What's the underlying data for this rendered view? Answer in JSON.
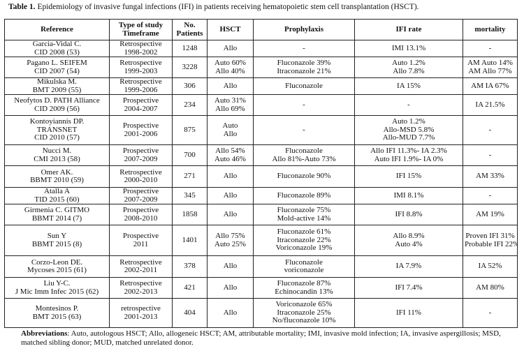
{
  "caption": {
    "label": "Table 1.",
    "text": "Epidemiology of invasive fungal infections (IFI) in patients receiving hematopoietic stem cell transplantation (HSCT)."
  },
  "headers": [
    [
      "Reference"
    ],
    [
      "Type of study",
      "Timeframe"
    ],
    [
      "No.",
      "Patients"
    ],
    [
      "HSCT"
    ],
    [
      "Prophylaxis"
    ],
    [
      "IFI rate"
    ],
    [
      "mortality"
    ]
  ],
  "rows": [
    [
      [
        "Garcia-Vidal C.",
        "CID 2008 (53)"
      ],
      [
        "Retrospective",
        "1998-2002"
      ],
      [
        "1248"
      ],
      [
        "Allo"
      ],
      [
        "-"
      ],
      [
        "IMI 13.1%"
      ],
      [
        "-"
      ]
    ],
    [
      [
        "Pagano L. SEIFEM",
        "CID 2007 (54)"
      ],
      [
        "Retrospective",
        "1999-2003"
      ],
      [
        "3228"
      ],
      [
        "Auto 60%",
        "Allo 40%"
      ],
      [
        "Fluconazole 39%",
        "Itraconazole 21%"
      ],
      [
        "Auto 1.2%",
        "Allo 7.8%"
      ],
      [
        "AM Auto 14%",
        "AM Allo 77%"
      ]
    ],
    [
      [
        "Mikulska M.",
        "BMT 2009 (55)"
      ],
      [
        "Retrospective",
        "1999-2006"
      ],
      [
        "306"
      ],
      [
        "Allo"
      ],
      [
        "Fluconazole"
      ],
      [
        "IA 15%"
      ],
      [
        "AM IA 67%"
      ]
    ],
    [
      [
        "Neofytos D. PATH Alliance",
        "CID 2009 (56)"
      ],
      [
        "Prospective",
        "2004-2007"
      ],
      [
        "234"
      ],
      [
        "Auto 31%",
        "Allo 69%"
      ],
      [
        "-"
      ],
      [
        "-"
      ],
      [
        "IA 21.5%"
      ]
    ],
    [
      [
        "Kontoyiannis DP.",
        "TRANSNET",
        "CID 2010 (57)"
      ],
      [
        "Prospective",
        "2001-2006"
      ],
      [
        "875"
      ],
      [
        "Auto",
        "Allo"
      ],
      [
        "-"
      ],
      [
        "Auto 1.2%",
        "Allo-MSD 5.8%",
        "Allo-MUD 7.7%"
      ],
      [
        "-"
      ]
    ],
    [
      [
        "Nucci M.",
        "CMI 2013 (58)"
      ],
      [
        "Prospective",
        "2007-2009"
      ],
      [
        "700"
      ],
      [
        "Allo 54%",
        "Auto 46%"
      ],
      [
        "Fluconazole",
        "Allo 81%-Auto 73%"
      ],
      [
        "Allo IFI 11.3%- IA 2.3%",
        "Auto IFI  1.9%- IA 0%"
      ],
      [
        "-"
      ]
    ],
    [
      [
        "Omer AK.",
        "BBMT 2010 (59)"
      ],
      [
        "Retrospective",
        "2000-2010"
      ],
      [
        "271"
      ],
      [
        "Allo"
      ],
      [
        "Fluconazole 90%"
      ],
      [
        "IFI 15%"
      ],
      [
        "AM 33%"
      ]
    ],
    [
      [
        "Atalla A",
        "TID 2015 (60)"
      ],
      [
        "Prospective",
        "2007-2009"
      ],
      [
        "345"
      ],
      [
        "Allo"
      ],
      [
        "Fluconazole 89%"
      ],
      [
        "IMI 8.1%"
      ],
      [
        "-"
      ]
    ],
    [
      [
        "Girmenia C. GITMO",
        "BBMT 2014 (7)"
      ],
      [
        "Prospective",
        "2008-2010"
      ],
      [
        "1858"
      ],
      [
        "Allo"
      ],
      [
        "Fluconazole 75%",
        "Mold-active 14%"
      ],
      [
        "IFI 8.8%"
      ],
      [
        "AM 19%"
      ]
    ],
    [
      [
        "Sun Y",
        "BBMT 2015 (8)"
      ],
      [
        "Prospective",
        "2011"
      ],
      [
        "1401"
      ],
      [
        "Allo 75%",
        "Auto 25%"
      ],
      [
        "Fluconazole 61%",
        "Itraconazole 22%",
        "Voriconazole 19%"
      ],
      [
        "Allo 8.9%",
        "Auto 4%"
      ],
      [
        "Proven IFI 31%",
        "Probable IFI 22%"
      ]
    ],
    [
      [
        "Corzo-Leon DE.",
        "Mycoses 2015 (61)"
      ],
      [
        "Retrospective",
        "2002-2011"
      ],
      [
        "378"
      ],
      [
        "Allo"
      ],
      [
        "Fluconazole",
        "voriconazole"
      ],
      [
        "IA 7.9%"
      ],
      [
        "IA 52%"
      ]
    ],
    [
      [
        "Liu Y-C.",
        "J Mic Imm Infec 2015 (62)"
      ],
      [
        "Retrospective",
        "2002-2013"
      ],
      [
        "421"
      ],
      [
        "Allo"
      ],
      [
        "Fluconazole 87%",
        "Echinocandin 13%"
      ],
      [
        "IFI 7.4%"
      ],
      [
        "AM 80%"
      ]
    ],
    [
      [
        "Montesinos P.",
        "BMT 2015 (63)"
      ],
      [
        "retrospective",
        "2001-2013"
      ],
      [
        "404"
      ],
      [
        "Allo"
      ],
      [
        "Voriconazole 65%",
        "Itraconazole 25%",
        "No/fluconazole 10%"
      ],
      [
        "IFI 11%"
      ],
      [
        "-"
      ]
    ]
  ],
  "abbreviations": {
    "label": "Abbreviations",
    "text": ": Auto, autologous HSCT; Allo, allogeneic HSCT; AM, attributable mortality; IMI, invasive mold infection; IA, invasive aspergillosis; MSD, matched sibling donor; MUD, matched unrelated donor."
  }
}
